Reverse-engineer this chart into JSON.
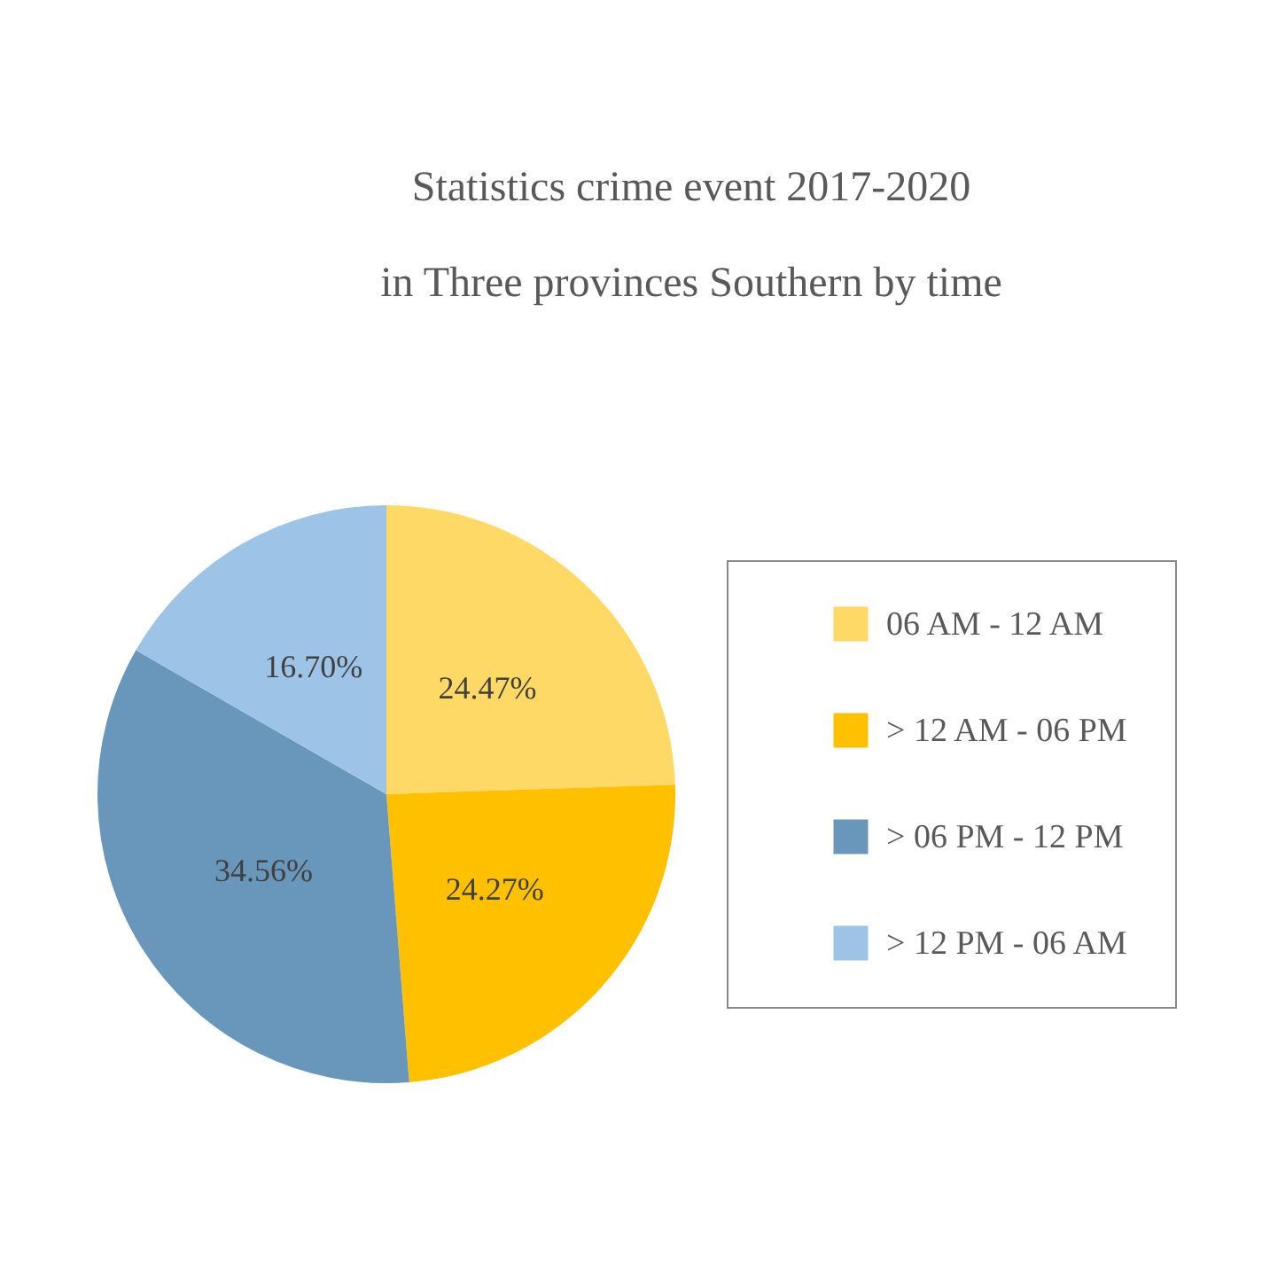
{
  "chart_data": {
    "type": "pie",
    "title": "Statistics crime event 2017-2020",
    "subtitle": "in Three provinces Southern by time",
    "categories": [
      "06 AM - 12 AM",
      "> 12 AM - 06 PM",
      "> 06 PM - 12 PM",
      "> 12 PM - 06 AM"
    ],
    "values": [
      24.47,
      24.27,
      34.56,
      16.7
    ],
    "colors": [
      "#ffd966",
      "#ffc000",
      "#6897bb",
      "#9dc3e6"
    ],
    "value_labels": [
      "24.47%",
      "24.27%",
      "34.56%",
      "16.70%"
    ],
    "legend": "right"
  }
}
